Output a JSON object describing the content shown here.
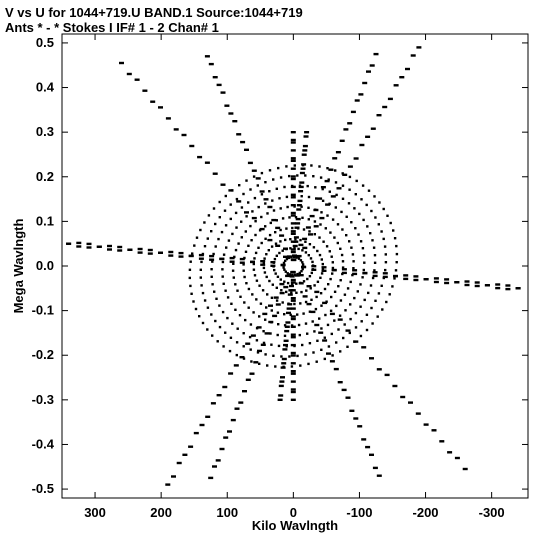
{
  "chart_data": {
    "type": "scatter",
    "title": "V vs U for 1044+719.U BAND.1   Source:1044+719",
    "subtitle": "Ants * - *     Stokes I  IF# 1 - 2  Chan# 1",
    "xlabel": "Kilo Wavlngth",
    "ylabel": "Mega Wavlngth",
    "xlim": [
      350,
      -355
    ],
    "ylim": [
      -0.52,
      0.52
    ],
    "x_ticks": [
      300,
      200,
      100,
      0,
      -100,
      -200,
      -300
    ],
    "x_tick_labels": [
      "300",
      "200",
      "100",
      "0",
      "-100",
      "-200",
      "-300"
    ],
    "y_ticks": [
      0.5,
      0.4,
      0.3,
      0.2,
      0.1,
      0.0,
      -0.1,
      -0.2,
      -0.3,
      -0.4,
      -0.5
    ],
    "y_tick_labels": [
      "0.5",
      "0.4",
      "0.3",
      "0.2",
      "0.1",
      "0.0",
      "-0.1",
      "-0.2",
      "-0.3",
      "-0.4",
      "-0.5"
    ],
    "grid": false,
    "legend": "none",
    "point_color": "#000000",
    "structure": {
      "ellipse_tracks": {
        "x_semi_axis_kilo": [
          15,
          30,
          45,
          60,
          75,
          90,
          105,
          120,
          135,
          150
        ],
        "y_semi_axis_mega": [
          0.02,
          0.04,
          0.06,
          0.085,
          0.11,
          0.135,
          0.16,
          0.185,
          0.21,
          0.235
        ],
        "tilt_deg": [
          5,
          10,
          15,
          20,
          25,
          30,
          35,
          38,
          40,
          42
        ]
      },
      "radial_arms": [
        {
          "end_u": 260,
          "end_v": 0.455
        },
        {
          "end_u": -125,
          "end_v": 0.475
        },
        {
          "end_u": -340,
          "end_v": -0.05
        },
        {
          "end_u": -130,
          "end_v": -0.47
        },
        {
          "end_u": 190,
          "end_v": -0.49
        },
        {
          "end_u": 340,
          "end_v": 0.05
        },
        {
          "end_u": 0,
          "end_v": 0.3
        },
        {
          "end_u": 20,
          "end_v": -0.3
        }
      ]
    }
  }
}
